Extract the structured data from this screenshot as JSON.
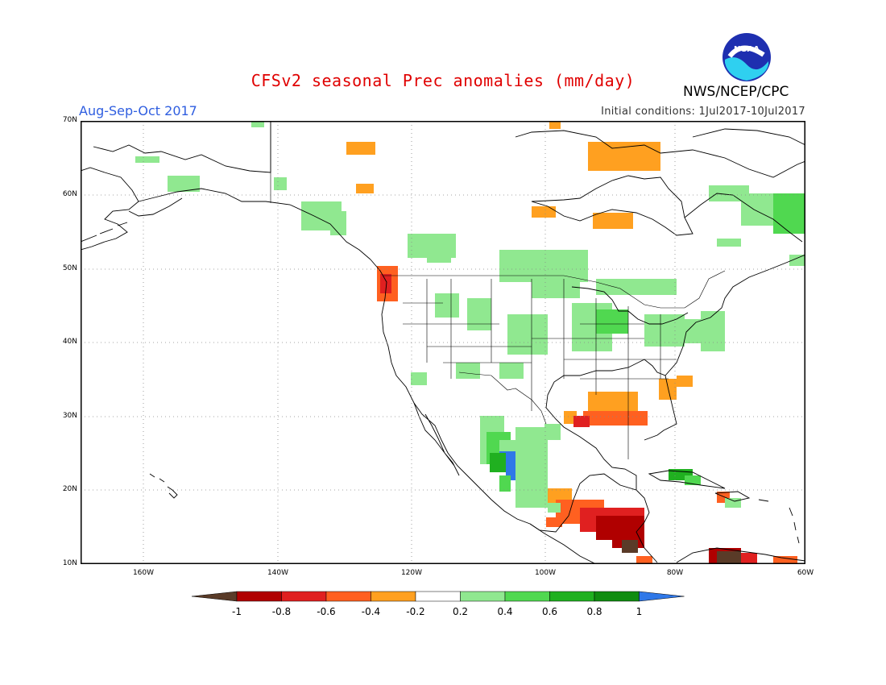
{
  "header": {
    "title": "CFSv2 seasonal Prec anomalies (mm/day)",
    "season": "Aug-Sep-Oct 2017",
    "init_conditions": "Initial conditions: 1Jul2017-10Jul2017",
    "agency": "NWS/NCEP/CPC",
    "logo_text": "NOAA"
  },
  "map": {
    "lat_labels": [
      "70N",
      "60N",
      "50N",
      "40N",
      "30N",
      "20N",
      "10N"
    ],
    "lon_labels": [
      "160W",
      "140W",
      "120W",
      "100W",
      "80W",
      "60W"
    ],
    "lat_range": [
      10,
      70
    ],
    "lon_range": [
      -172,
      -60
    ],
    "gridlines": "dotted",
    "projection": "lat-lon"
  },
  "colorbar": {
    "labels": [
      "-1",
      "-0.8",
      "-0.6",
      "-0.4",
      "-0.2",
      "0.2",
      "0.4",
      "0.6",
      "0.8",
      "1"
    ],
    "colors": [
      "#5a3b28",
      "#b00000",
      "#e02020",
      "#ff6020",
      "#ffa020",
      "#ffffff",
      "#90e890",
      "#50d850",
      "#20b020",
      "#108c10",
      "#2f78e8"
    ]
  }
}
